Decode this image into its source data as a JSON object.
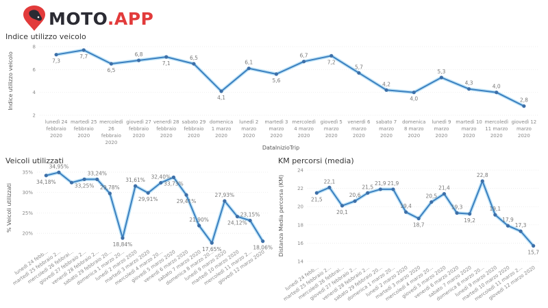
{
  "header": {
    "logo_text_main": "MOTO",
    "logo_text_accent": ".APP",
    "brand_color": "#e23b3b",
    "dark_color": "#2b2b33"
  },
  "chart_data": [
    {
      "id": "indice",
      "type": "line",
      "title": "Indice utilizzo veicolo",
      "xlabel": "DataInizioTrip",
      "ylabel": "Indice utilizzo veicolo",
      "ylim": [
        2,
        8
      ],
      "yticks": [
        "2",
        "4",
        "6",
        "8"
      ],
      "ytick_values": [
        2,
        4,
        6,
        8
      ],
      "grid": true,
      "color": "#3a7fbf",
      "categories": [
        [
          "lunedì 24",
          "febbraio",
          "2020"
        ],
        [
          "martedì 25",
          "febbraio",
          "2020"
        ],
        [
          "mercoledì",
          "26",
          "febbraio",
          "2020"
        ],
        [
          "giovedì 27",
          "febbraio",
          "2020"
        ],
        [
          "venerdì 28",
          "febbraio",
          "2020"
        ],
        [
          "sabato 29",
          "febbraio",
          "2020"
        ],
        [
          "domenica",
          "1 marzo",
          "2020"
        ],
        [
          "lunedì 2",
          "marzo",
          "2020"
        ],
        [
          "martedì 3",
          "marzo",
          "2020"
        ],
        [
          "mercoledì",
          "4 marzo",
          "2020"
        ],
        [
          "giovedì 5",
          "marzo",
          "2020"
        ],
        [
          "venerdì 6",
          "marzo",
          "2020"
        ],
        [
          "sabato 7",
          "marzo",
          "2020"
        ],
        [
          "domenica",
          "8 marzo",
          "2020"
        ],
        [
          "lunedì 9",
          "marzo",
          "2020"
        ],
        [
          "martedì 10",
          "marzo",
          "2020"
        ],
        [
          "mercoledì",
          "11 marzo",
          "2020"
        ],
        [
          "giovedì 12",
          "marzo",
          "2020"
        ]
      ],
      "values": [
        7.3,
        7.7,
        6.5,
        6.8,
        7.1,
        6.5,
        4.1,
        6.1,
        5.6,
        6.7,
        7.2,
        5.7,
        4.2,
        4.0,
        5.3,
        4.3,
        4.0,
        2.8
      ],
      "labels": [
        "7,3",
        "7,7",
        "6,5",
        "6,8",
        "7,1",
        "6,5",
        "4,1",
        "6,1",
        "5,6",
        "6,7",
        "7,2",
        "5,7",
        "4,2",
        "4,0",
        "5,3",
        "4,3",
        "4,0",
        "2,8"
      ],
      "label_pos": [
        "below",
        "below",
        "below",
        "above",
        "below",
        "above",
        "below",
        "above",
        "below",
        "above",
        "below",
        "above",
        "above",
        "below",
        "above",
        "above",
        "above",
        "above"
      ]
    },
    {
      "id": "veicoli",
      "type": "line",
      "title": "Veicoli utilizzati",
      "xlabel": "",
      "ylabel": "% Veicoli utilizzati",
      "ylim": [
        17,
        35.5
      ],
      "yticks": [
        "20%",
        "25%",
        "30%",
        "35%"
      ],
      "ytick_values": [
        20,
        25,
        30,
        35
      ],
      "grid": true,
      "color": "#3a7fbf",
      "categories": [
        "lunedì 24 febb...",
        "martedì 25 febbraio 2...",
        "mercoledì 26 febbrai...",
        "giovedì 27 febbraio 2...",
        "venerdì 28 febbraio 2...",
        "sabato 29 febbraio 20...",
        "domenica 1 marzo 20...",
        "lunedì 2 marzo 2020",
        "martedì 3 marzo 2020",
        "mercoledì 4 marzo 20...",
        "giovedì 5 marzo 2020",
        "venerdì 6 marzo 2020",
        "sabato 7 marzo 2020",
        "domenica 8 marzo 20...",
        "lunedì 9 marzo 2020",
        "martedì 10 marzo 2020",
        "mercoledì 11 marzo 2...",
        "giovedì 12 marzo 2020"
      ],
      "values": [
        34.18,
        34.95,
        32.44,
        33.25,
        33.24,
        29.78,
        18.84,
        31.61,
        29.91,
        32.4,
        33.73,
        29.41,
        21.9,
        17.65,
        27.93,
        24.12,
        23.15,
        18.06
      ],
      "labels": [
        "34,18%",
        "34,95%",
        "",
        "33,25%",
        "33,24%",
        "29,78%",
        "18,84%",
        "31,61%",
        "29,91%",
        "32,40%",
        "33,73%",
        "29,41%",
        "21,90%",
        "17,65%",
        "27,93%",
        "24,12%",
        "23,15%",
        "18,06%"
      ],
      "label_pos": [
        "below",
        "above",
        "none",
        "below",
        "above",
        "above",
        "below",
        "above",
        "below",
        "above",
        "below",
        "below",
        "above",
        "below",
        "above",
        "below",
        "above",
        "below"
      ]
    },
    {
      "id": "km",
      "type": "line",
      "title": "KM percorsi (media)",
      "xlabel": "",
      "ylabel": "Distanza Media percorsa (KM)",
      "ylim": [
        14,
        24
      ],
      "yticks": [
        "14",
        "16",
        "18",
        "20",
        "22",
        "24"
      ],
      "ytick_values": [
        14,
        16,
        18,
        20,
        22,
        24
      ],
      "grid": true,
      "color": "#3a7fbf",
      "categories": [
        "lunedì 24 febb...",
        "martedì 25 febbraio 2...",
        "mercoledì 26 febbrai...",
        "giovedì 27 febbraio 2...",
        "venerdì 28 febbraio 2...",
        "sabato 29 febbraio 20...",
        "domenica 1 marzo 20...",
        "lunedì 2 marzo 2020",
        "martedì 3 marzo 2020",
        "mercoledì 4 marzo 20...",
        "giovedì 5 marzo 2020",
        "venerdì 6 marzo 2020",
        "sabato 7 marzo 2020",
        "domenica 8 marzo 20...",
        "lunedì 9 marzo 2020",
        "martedì 10 marzo 2020",
        "mercoledì 11 marzo 2...",
        "giovedì 12 marzo 2020"
      ],
      "values": [
        21.5,
        22.1,
        20.1,
        20.6,
        21.5,
        21.9,
        21.9,
        19.4,
        18.7,
        20.5,
        21.4,
        19.3,
        19.2,
        22.8,
        19.1,
        17.9,
        17.3,
        15.7
      ],
      "labels": [
        "21,5",
        "22,1",
        "20,1",
        "20,6",
        "21,5",
        "21,9",
        "21,9",
        "19,4",
        "18,7",
        "20,5",
        "21,4",
        "19,3",
        "19,2",
        "22,8",
        "19,1",
        "17,9",
        "17,3",
        "15,7"
      ],
      "label_pos": [
        "below",
        "above",
        "below",
        "above",
        "above",
        "above",
        "above",
        "above",
        "below",
        "above",
        "above",
        "above",
        "below",
        "above",
        "above",
        "above",
        "above",
        "below"
      ]
    }
  ]
}
